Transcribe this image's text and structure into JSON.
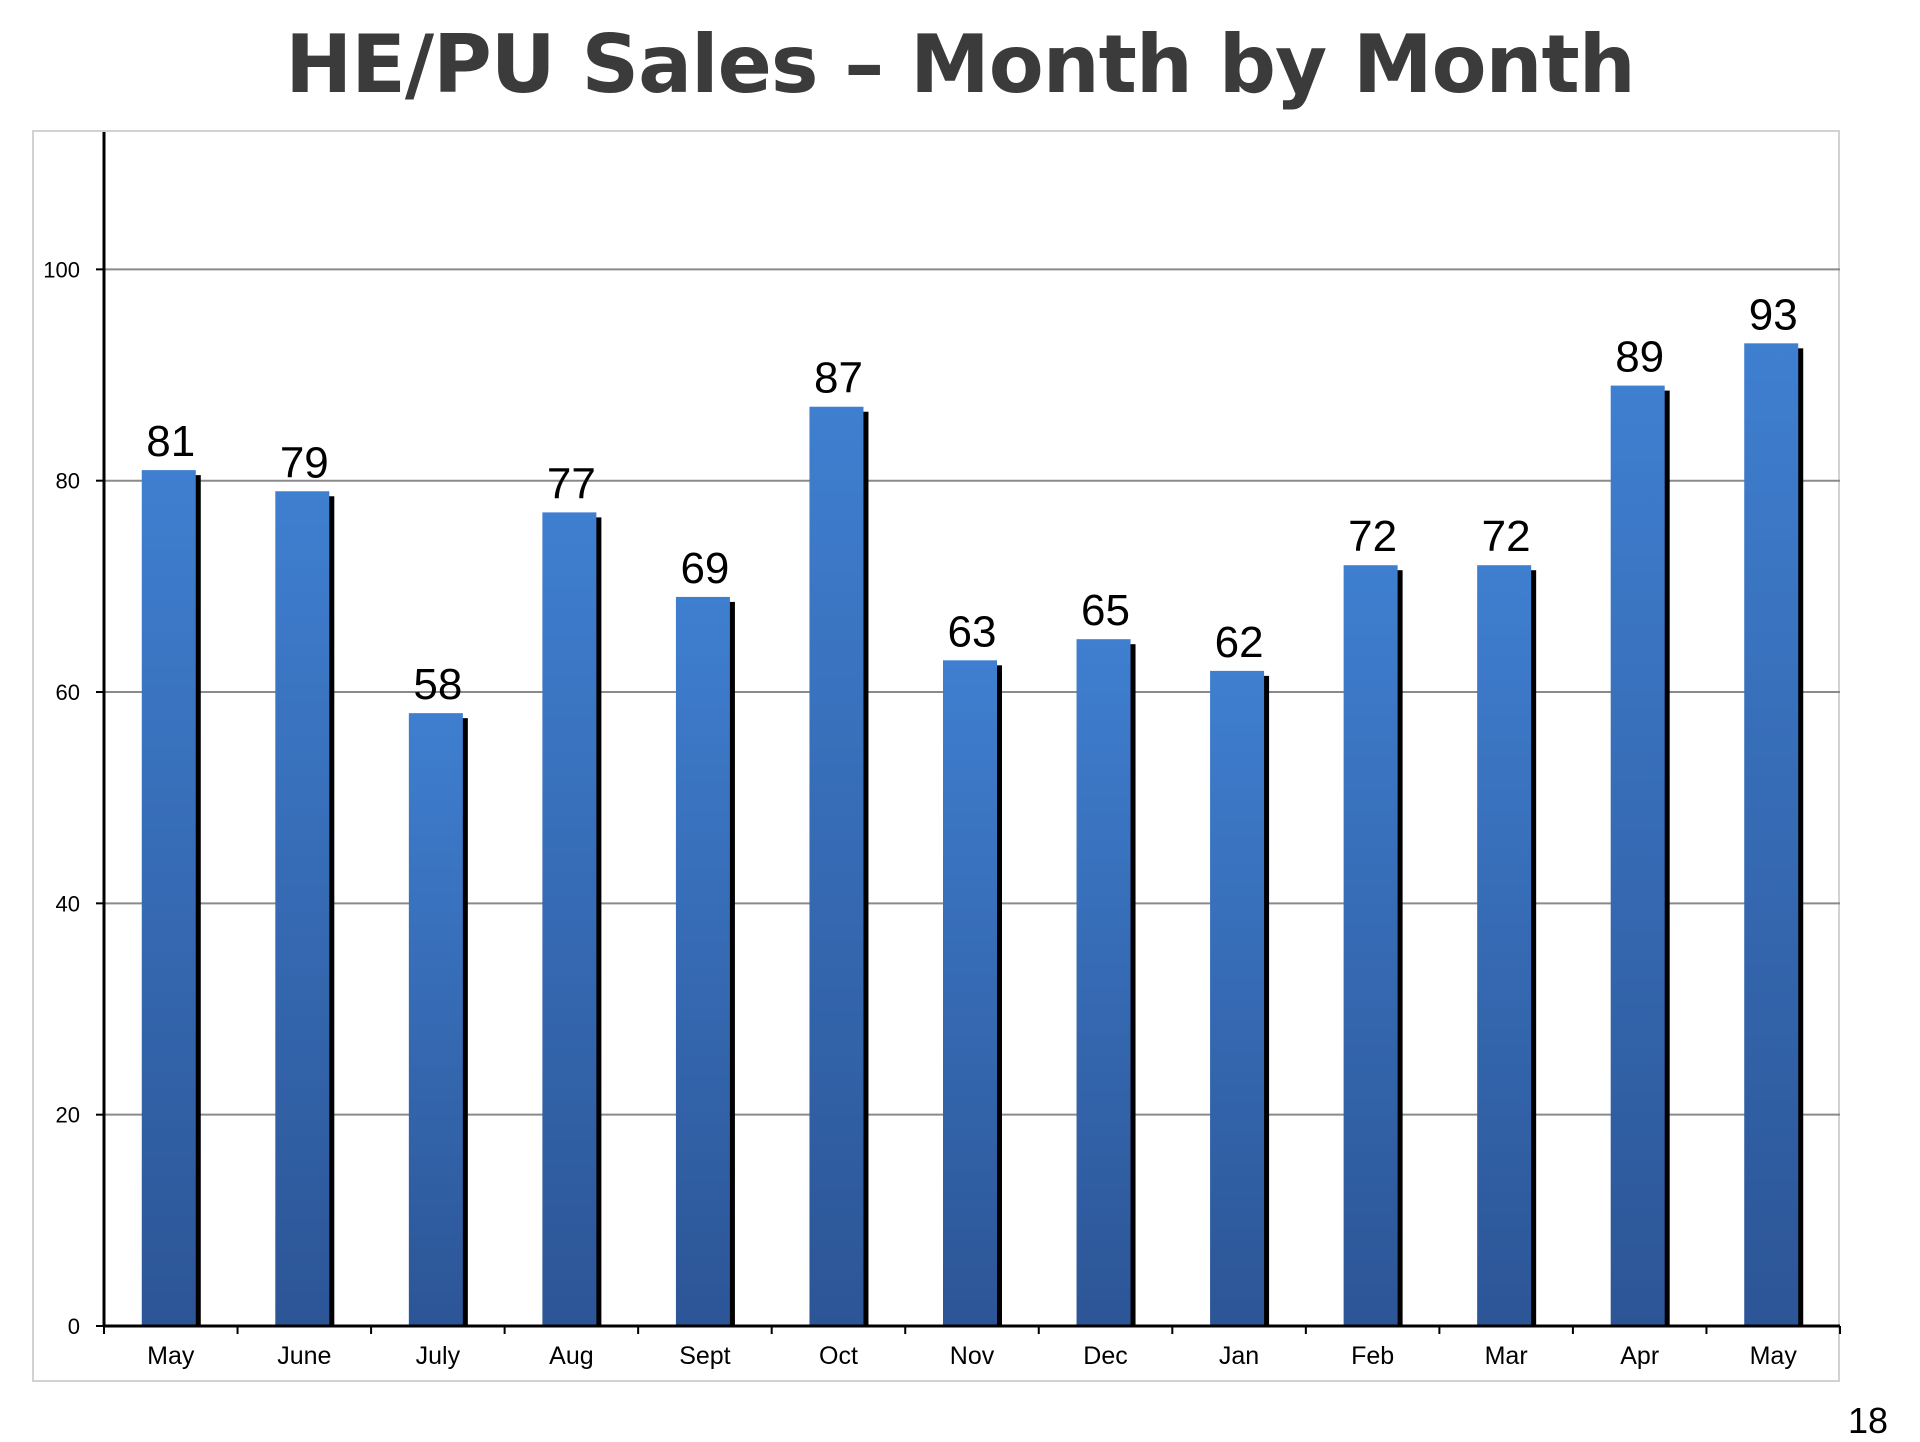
{
  "slide": {
    "title": "HE/PU Sales – Month by Month",
    "page_number": "18"
  },
  "colors": {
    "bar_light": "#3f7fd0",
    "bar_dark": "#2c5596",
    "bar_shadow": "#000000",
    "gridline": "#8a8a8a",
    "axis": "#000000"
  },
  "chart_data": {
    "type": "bar",
    "title": "",
    "xlabel": "",
    "ylabel": "",
    "categories": [
      "May",
      "June",
      "July",
      "Aug",
      "Sept",
      "Oct",
      "Nov",
      "Dec",
      "Jan",
      "Feb",
      "Mar",
      "Apr",
      "May"
    ],
    "values": [
      81,
      79,
      58,
      77,
      69,
      87,
      63,
      65,
      62,
      72,
      72,
      89,
      93
    ],
    "data_labels": [
      "81",
      "79",
      "58",
      "77",
      "69",
      "87",
      "63",
      "65",
      "62",
      "72",
      "72",
      "89",
      "93"
    ],
    "ylim": [
      0,
      113
    ],
    "yticks": [
      0,
      20,
      40,
      60,
      80,
      100
    ],
    "ytick_labels": [
      "0",
      "20",
      "40",
      "60",
      "80",
      "100"
    ],
    "grid": true,
    "legend": "none"
  }
}
